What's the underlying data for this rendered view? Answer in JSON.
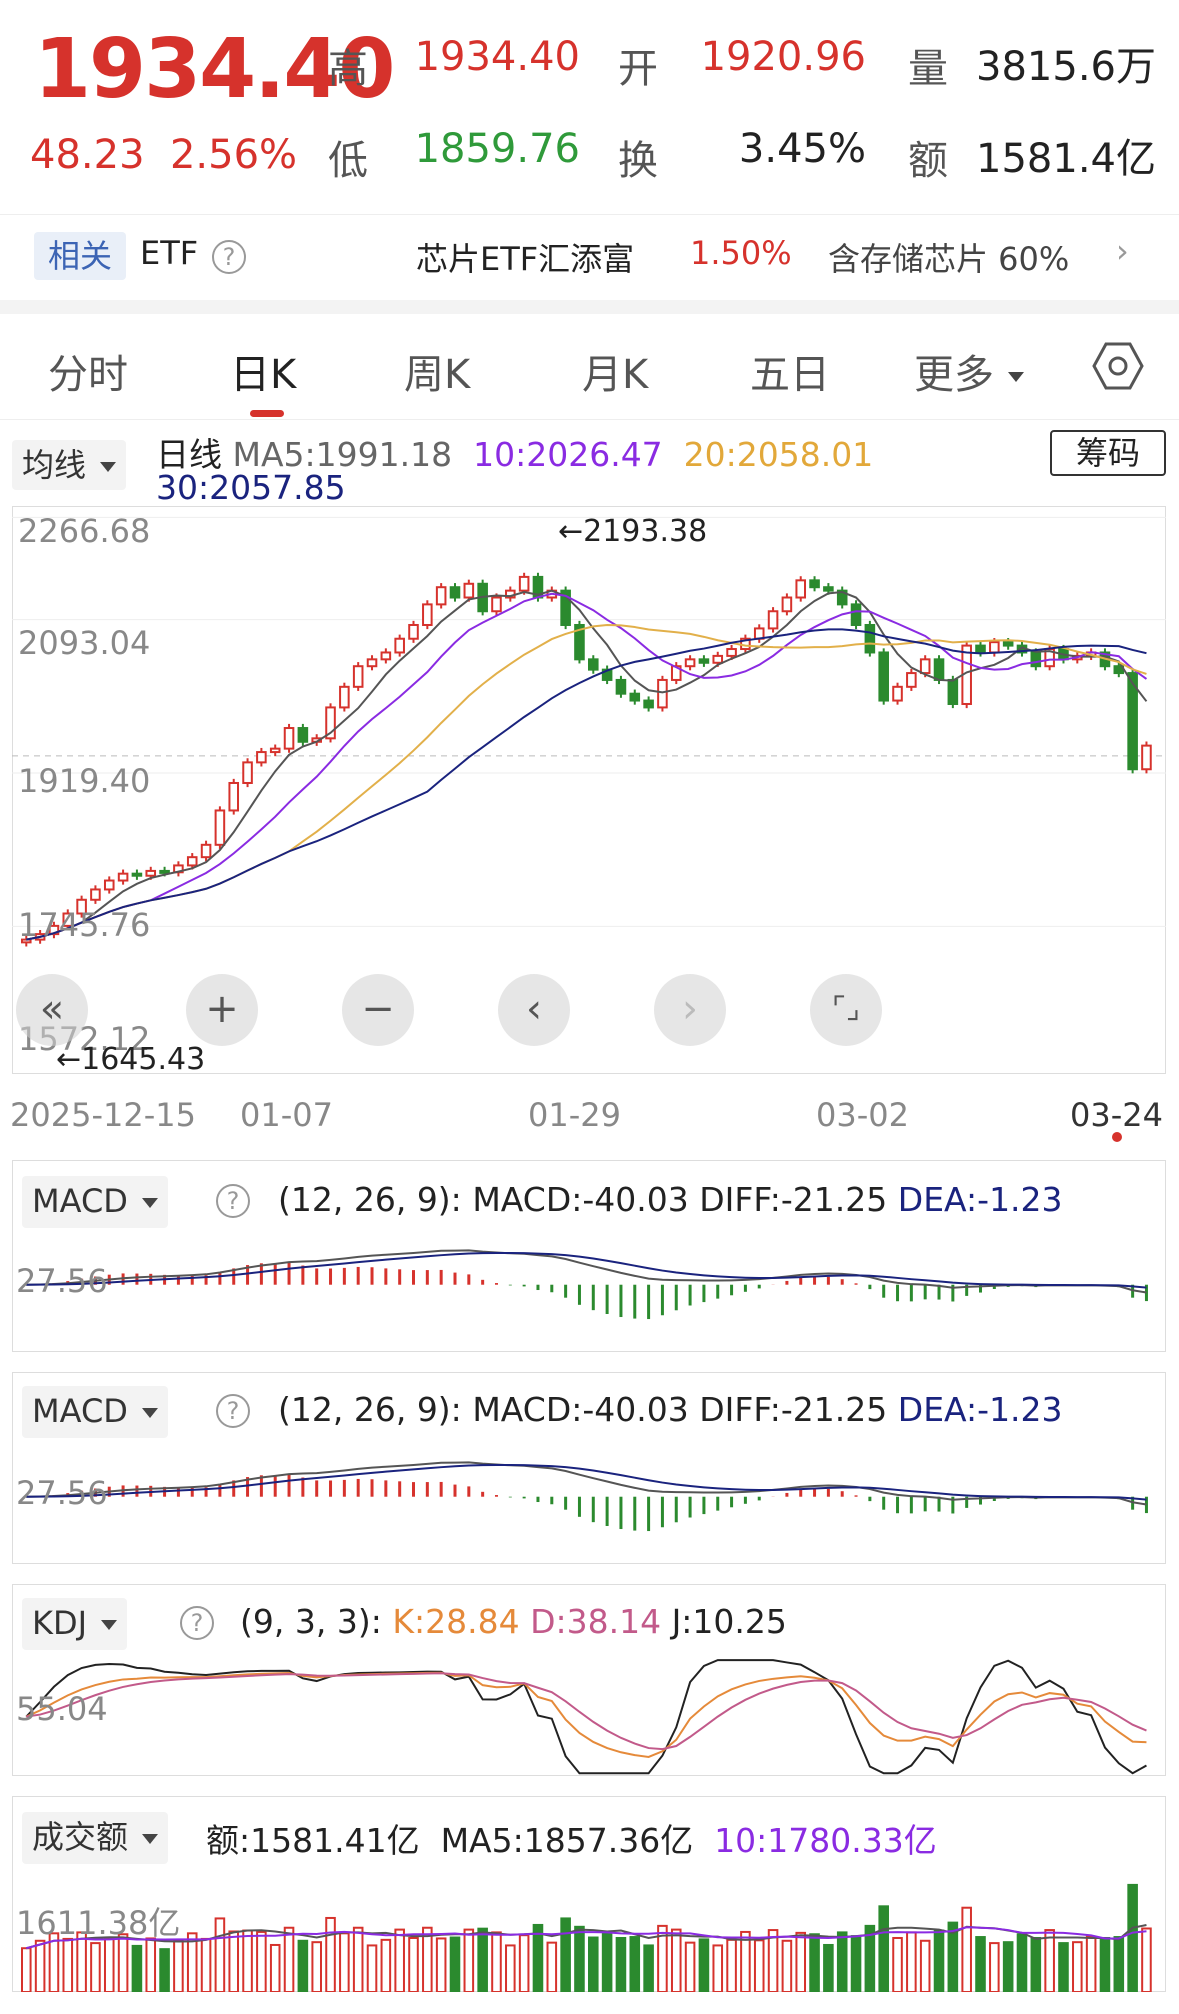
{
  "quote": {
    "price": "1934.40",
    "change": "48.23",
    "change_pct": "2.56%",
    "high_label": "高",
    "high": "1934.40",
    "open_label": "开",
    "open": "1920.96",
    "vol_label": "量",
    "vol": "3815.6万",
    "low_label": "低",
    "low": "1859.76",
    "turn_label": "换",
    "turn": "3.45%",
    "amt_label": "额",
    "amt": "1581.4亿"
  },
  "etf": {
    "tag": "相关",
    "label": "ETF",
    "name": "芯片ETF汇添富",
    "pct": "1.50%",
    "hold": "含存储芯片 60%"
  },
  "tabs": [
    {
      "label": "分时"
    },
    {
      "label": "日K"
    },
    {
      "label": "周K"
    },
    {
      "label": "月K"
    },
    {
      "label": "五日"
    },
    {
      "label": "更多"
    }
  ],
  "main": {
    "ma_dropdown": "均线",
    "line_label": "日线",
    "ma5": "MA5:1991.18",
    "ma10": "10:2026.47",
    "ma20": "20:2058.01",
    "ma30": "30:2057.85",
    "chip_button": "筹码",
    "y_ticks": [
      "2266.68",
      "2093.04",
      "1919.40",
      "1745.76",
      "1572.12"
    ],
    "high_note": "←2193.38",
    "low_note": "←1645.43",
    "x_ticks": [
      "2025-12-15",
      "01-07",
      "01-29",
      "03-02",
      "03-24"
    ],
    "colors": {
      "up": "#d6322c",
      "down": "#2b8a2e",
      "ma5": "#555555",
      "ma10": "#8a2be2",
      "ma20": "#e2b04a",
      "ma30": "#1a237e"
    }
  },
  "macd1": {
    "dropdown": "MACD",
    "params": "(12, 26, 9):",
    "macd": "MACD:-40.03",
    "diff": "DIFF:-21.25",
    "dea": "DEA:-1.23",
    "y_tick": "27.56"
  },
  "macd2": {
    "dropdown": "MACD",
    "params": "(12, 26, 9):",
    "macd": "MACD:-40.03",
    "diff": "DIFF:-21.25",
    "dea": "DEA:-1.23",
    "y_tick": "27.56"
  },
  "kdj": {
    "dropdown": "KDJ",
    "params": "(9, 3, 3):",
    "k": "K:28.84",
    "d": "D:38.14",
    "j": "J:10.25",
    "y_tick": "55.04"
  },
  "amount": {
    "dropdown": "成交额",
    "amt": "额:1581.41亿",
    "ma5": "MA5:1857.36亿",
    "ma10": "10:1780.33亿",
    "y_tick": "1611.38亿"
  },
  "chart_data": [
    {
      "type": "candlestick",
      "title": "日线",
      "closes": [
        1652,
        1660,
        1672,
        1690,
        1710,
        1725,
        1738,
        1748,
        1745,
        1752,
        1750,
        1760,
        1772,
        1790,
        1840,
        1880,
        1910,
        1925,
        1930,
        1960,
        1940,
        1945,
        1990,
        2020,
        2050,
        2060,
        2070,
        2090,
        2110,
        2140,
        2165,
        2150,
        2170,
        2130,
        2150,
        2160,
        2180,
        2150,
        2160,
        2110,
        2060,
        2045,
        2030,
        2010,
        2000,
        1990,
        2030,
        2050,
        2060,
        2055,
        2065,
        2075,
        2090,
        2105,
        2130,
        2150,
        2175,
        2165,
        2160,
        2140,
        2110,
        2070,
        2000,
        2020,
        2040,
        2060,
        2030,
        1995,
        2080,
        2070,
        2085,
        2080,
        2070,
        2050,
        2075,
        2060,
        2065,
        2070,
        2050,
        2040,
        1900,
        1934.4
      ],
      "ma_lines": [
        "MA5",
        "MA10",
        "MA20",
        "MA30"
      ],
      "y_ticks": [
        2266.68,
        2093.04,
        1919.4,
        1745.76,
        1572.12
      ],
      "high_annotation": 2193.38,
      "low_annotation": 1645.43,
      "x_ticks": [
        "2025-12-15",
        "01-07",
        "01-29",
        "03-02",
        "03-24"
      ]
    },
    {
      "type": "bar",
      "title": "MACD",
      "series": [
        {
          "name": "MACD",
          "last": -40.03
        },
        {
          "name": "DIFF",
          "last": -21.25
        },
        {
          "name": "DEA",
          "last": -1.23
        }
      ]
    },
    {
      "type": "line",
      "title": "KDJ",
      "series": [
        {
          "name": "K",
          "last": 28.84
        },
        {
          "name": "D",
          "last": 38.14
        },
        {
          "name": "J",
          "last": 10.25
        }
      ]
    },
    {
      "type": "bar",
      "title": "成交额",
      "series": [
        {
          "name": "额",
          "last": 1581.41
        },
        {
          "name": "MA5",
          "last": 1857.36
        },
        {
          "name": "10",
          "last": 1780.33
        }
      ]
    }
  ]
}
